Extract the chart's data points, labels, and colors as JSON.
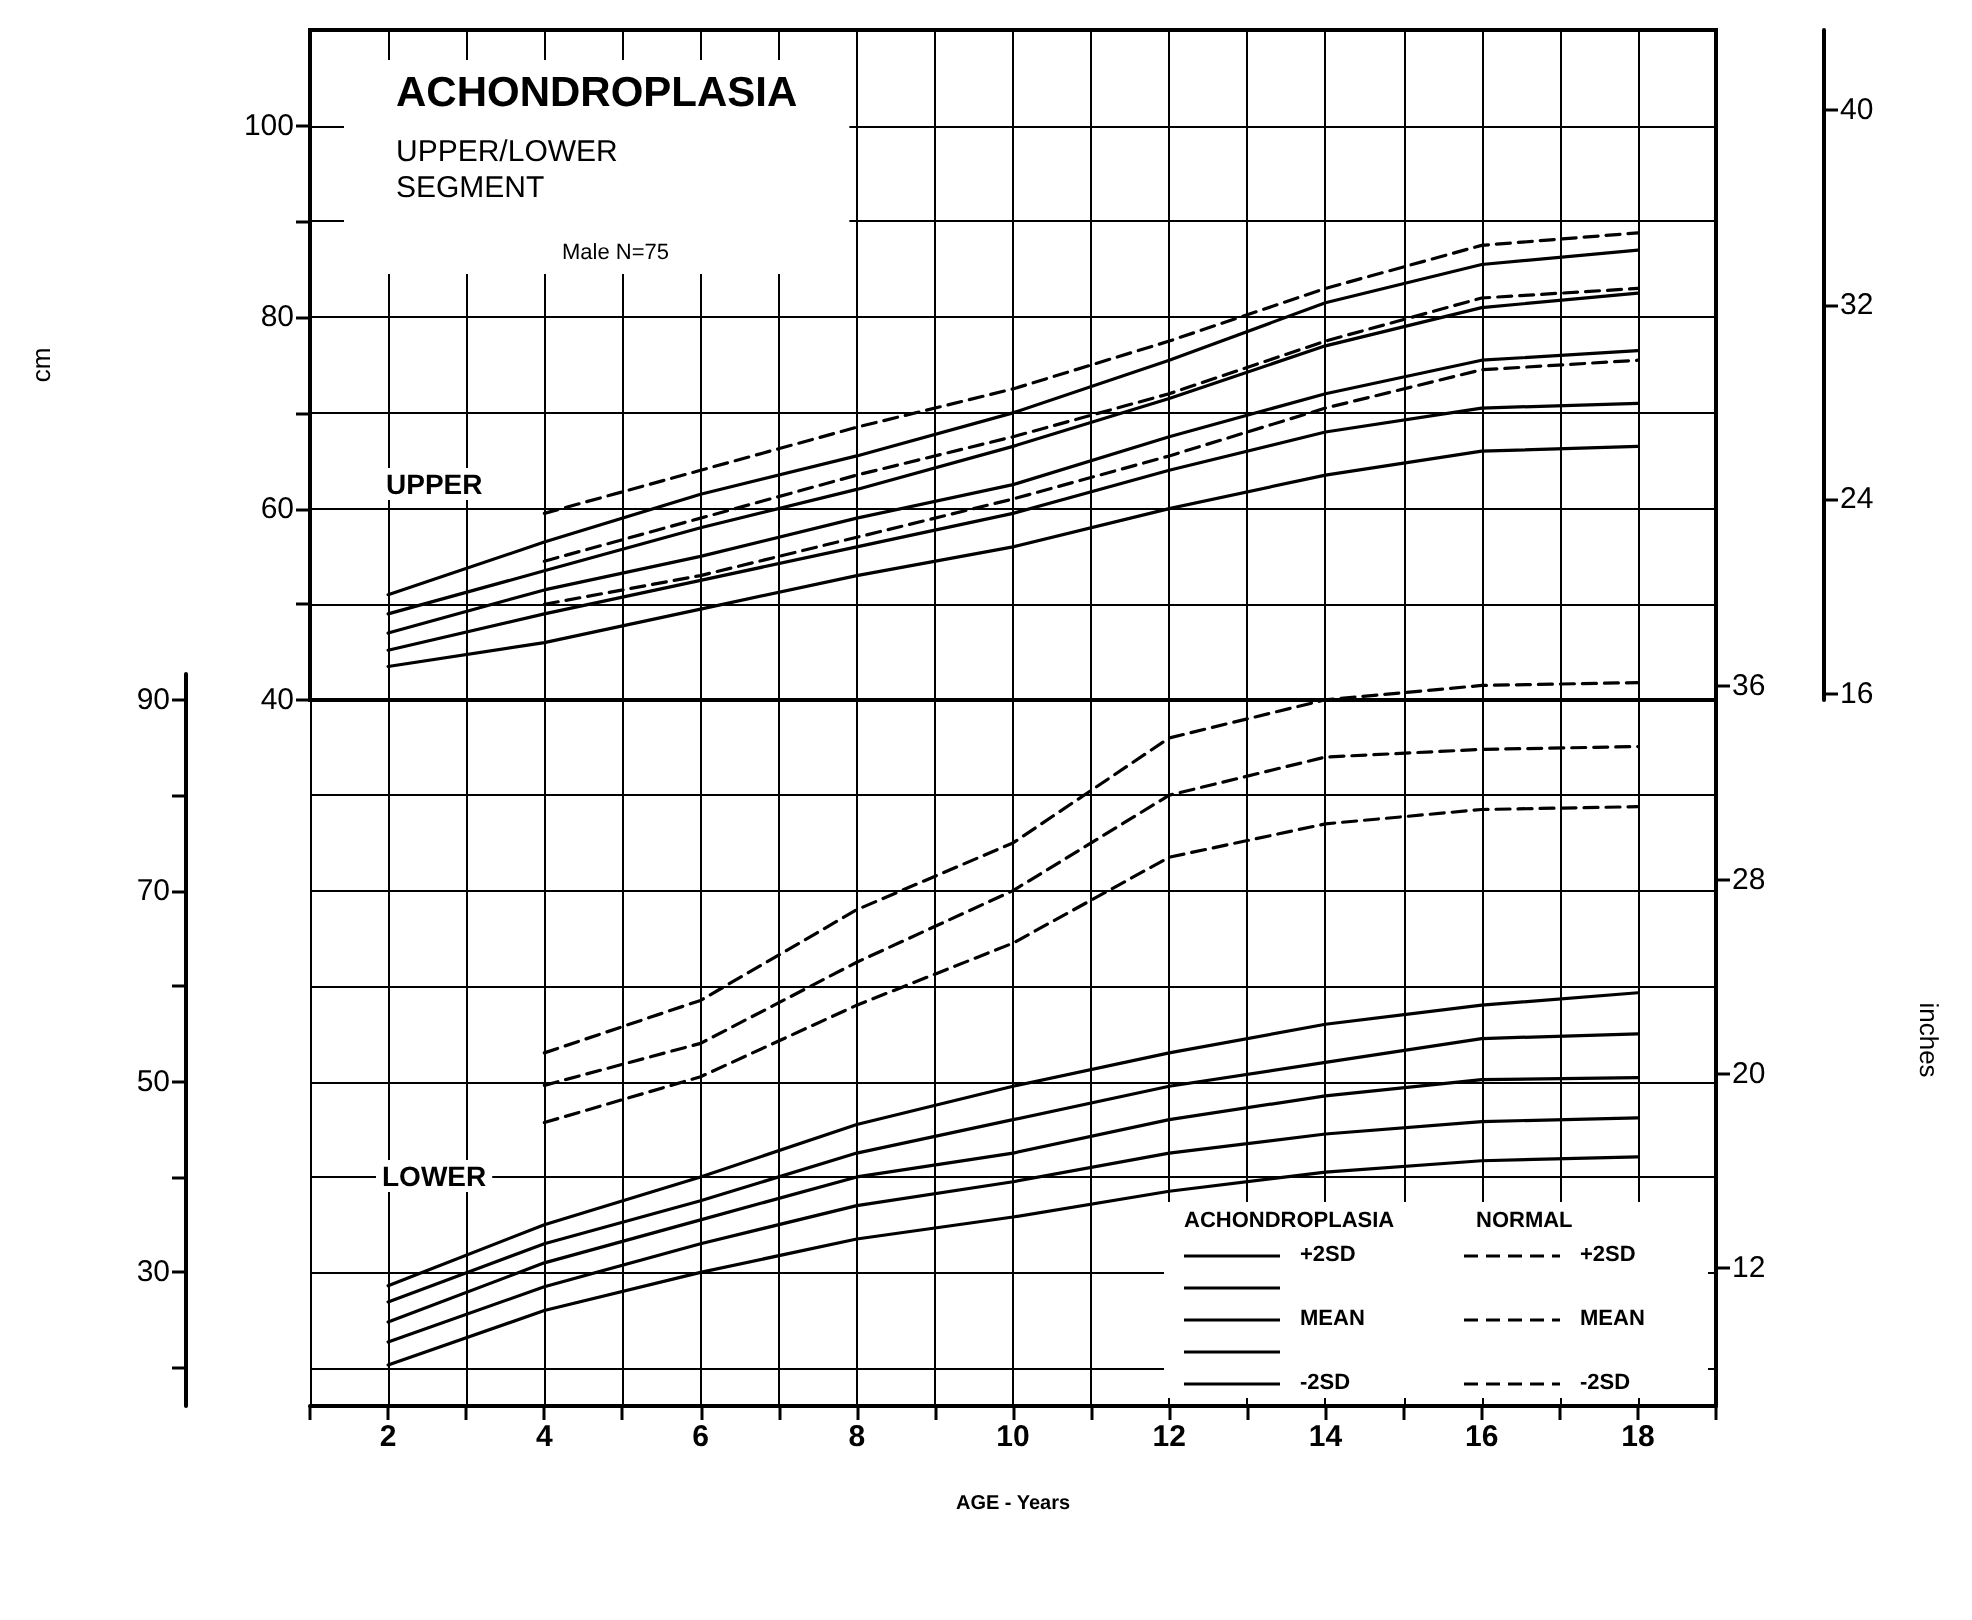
{
  "chart_data": [
    {
      "type": "line",
      "title": "ACHONDROPLASIA",
      "subtitle": "UPPER/LOWER SEGMENT",
      "ylabel": "cm",
      "annotations": [
        "Male N=75",
        "UPPER"
      ],
      "x": [
        2,
        4,
        6,
        8,
        10,
        12,
        14,
        16,
        18
      ],
      "xlim": [
        1,
        19
      ],
      "xticks": [
        {
          "value": 1,
          "label": null
        },
        {
          "value": 2,
          "label": null
        },
        {
          "value": 3,
          "label": null
        },
        {
          "value": 4,
          "label": null
        },
        {
          "value": 5,
          "label": null
        },
        {
          "value": 6,
          "label": null
        },
        {
          "value": 7,
          "label": null
        },
        {
          "value": 8,
          "label": null
        },
        {
          "value": 9,
          "label": null
        },
        {
          "value": 10,
          "label": null
        },
        {
          "value": 11,
          "label": null
        },
        {
          "value": 12,
          "label": null
        },
        {
          "value": 13,
          "label": null
        },
        {
          "value": 14,
          "label": null
        },
        {
          "value": 15,
          "label": null
        },
        {
          "value": 16,
          "label": null
        },
        {
          "value": 17,
          "label": null
        },
        {
          "value": 18,
          "label": null
        },
        {
          "value": 19,
          "label": null
        }
      ],
      "ylim": [
        40,
        110
      ],
      "yticks": [
        40,
        {
          "value": 50,
          "label": null
        },
        60,
        {
          "value": 70,
          "label": null
        },
        80,
        {
          "value": 90,
          "label": null
        },
        100
      ],
      "y2lim": [
        15.75,
        43.31
      ],
      "y2ticks": [
        16,
        24,
        32,
        40
      ],
      "tick_labels": "y",
      "grid": true,
      "marker": "none",
      "series": [
        {
          "color": "#000000",
          "line_style": "solid",
          "values": [
            51.0,
            56.5,
            61.5,
            65.5,
            70,
            75.5,
            81.5,
            85.5,
            87
          ]
        },
        {
          "color": "#000000",
          "line_style": "solid",
          "values": [
            49.0,
            53.5,
            58,
            62,
            66.5,
            71.5,
            77,
            81,
            82.5
          ]
        },
        {
          "color": "#000000",
          "line_style": "solid",
          "values": [
            47.0,
            51.5,
            55,
            59,
            62.5,
            67.5,
            72,
            75.5,
            76.5
          ]
        },
        {
          "color": "#000000",
          "line_style": "solid",
          "values": [
            45.2,
            49,
            52.5,
            56,
            59.5,
            64,
            68,
            70.5,
            71
          ]
        },
        {
          "color": "#000000",
          "line_style": "solid",
          "values": [
            43.5,
            46,
            49.5,
            53,
            56,
            60,
            63.5,
            66,
            66.5
          ]
        },
        {
          "color": "#000000",
          "line_style": "dashed",
          "x": [
            4,
            6,
            8,
            10,
            12,
            14,
            16,
            18
          ],
          "values": [
            59.5,
            64,
            68.5,
            72.5,
            77.5,
            83,
            87.5,
            88.8
          ]
        },
        {
          "color": "#000000",
          "line_style": "dashed",
          "x": [
            4,
            6,
            8,
            10,
            12,
            14,
            16,
            18
          ],
          "values": [
            54.5,
            59,
            63.5,
            67.5,
            72,
            77.5,
            82,
            83
          ]
        },
        {
          "color": "#000000",
          "line_style": "dashed",
          "x": [
            4,
            6,
            8,
            10,
            12,
            14,
            16,
            18
          ],
          "values": [
            50,
            53,
            57,
            61,
            65.5,
            70.5,
            74.5,
            75.5
          ]
        }
      ]
    },
    {
      "type": "line",
      "xlabel": "AGE - Years",
      "y2label": "inches",
      "annotations": [
        "LOWER",
        "ACHONDROPLASIA",
        "NORMAL"
      ],
      "x": [
        2,
        4,
        6,
        8,
        10,
        12,
        14,
        16,
        18
      ],
      "xlim": [
        1,
        19
      ],
      "xticks": [
        {
          "value": 1,
          "label": null
        },
        2,
        {
          "value": 3,
          "label": null
        },
        4,
        {
          "value": 5,
          "label": null
        },
        6,
        {
          "value": 7,
          "label": null
        },
        8,
        {
          "value": 9,
          "label": null
        },
        10,
        {
          "value": 11,
          "label": null
        },
        12,
        {
          "value": 13,
          "label": null
        },
        14,
        {
          "value": 15,
          "label": null
        },
        16,
        {
          "value": 17,
          "label": null
        },
        18,
        {
          "value": 19,
          "label": null
        }
      ],
      "ylim": [
        16,
        92.7
      ],
      "yticks": [
        {
          "value": 20,
          "label": null
        },
        30,
        {
          "value": 40,
          "label": null
        },
        50,
        {
          "value": 60,
          "label": null
        },
        70,
        {
          "value": 80,
          "label": null
        },
        90
      ],
      "y2lim": [
        6.3,
        36.5
      ],
      "y2ticks": [
        12,
        20,
        28,
        36
      ],
      "grid": true,
      "marker": "none",
      "legend": "bottom right",
      "series": [
        {
          "name": "+2SD",
          "color": "#000000",
          "line_style": "solid",
          "values": [
            28.6,
            35,
            40,
            45.5,
            49.5,
            53,
            56,
            58,
            59.3
          ]
        },
        {
          "color": "#000000",
          "line_style": "solid",
          "values": [
            26.9,
            33,
            37.5,
            42.5,
            46,
            49.5,
            52,
            54.5,
            55
          ]
        },
        {
          "name": "MEAN",
          "color": "#000000",
          "line_style": "solid",
          "values": [
            24.8,
            31,
            35.5,
            40,
            42.5,
            46,
            48.5,
            50.2,
            50.4
          ]
        },
        {
          "color": "#000000",
          "line_style": "solid",
          "values": [
            22.7,
            28.5,
            33,
            37,
            39.5,
            42.5,
            44.5,
            45.8,
            46.2
          ]
        },
        {
          "name": "-2SD",
          "color": "#000000",
          "line_style": "solid",
          "values": [
            20.3,
            26,
            30,
            33.5,
            35.8,
            38.5,
            40.5,
            41.7,
            42.1
          ]
        },
        {
          "name": "+2SD",
          "color": "#000000",
          "line_style": "dashed",
          "x": [
            4,
            6,
            8,
            10,
            12,
            14,
            16,
            18
          ],
          "values": [
            53,
            58.5,
            68,
            75,
            86,
            90,
            91.5,
            91.8
          ]
        },
        {
          "name": "MEAN",
          "color": "#000000",
          "line_style": "dashed",
          "x": [
            4,
            6,
            8,
            10,
            12,
            14,
            16,
            18
          ],
          "values": [
            49.6,
            54,
            62.5,
            70,
            80,
            84,
            84.8,
            85.1
          ]
        },
        {
          "name": "-2SD",
          "color": "#000000",
          "line_style": "dashed",
          "x": [
            4,
            6,
            8,
            10,
            12,
            14,
            16,
            18
          ],
          "values": [
            45.7,
            50.5,
            58,
            64.5,
            73.5,
            77,
            78.5,
            78.8
          ]
        }
      ]
    }
  ]
}
